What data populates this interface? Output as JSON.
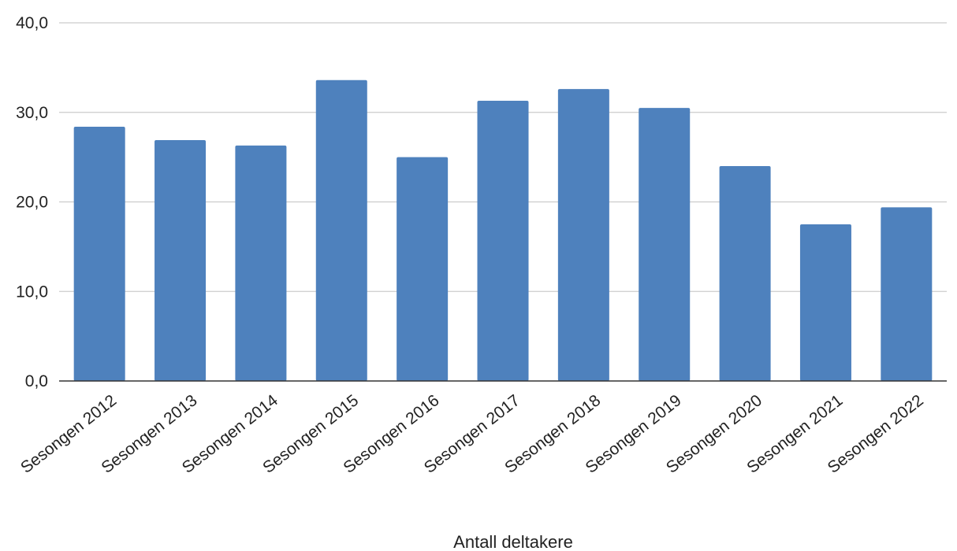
{
  "chart_data": {
    "type": "bar",
    "title": "",
    "xlabel": "Antall deltakere",
    "ylabel": "",
    "categories": [
      "Sesongen 2012",
      "Sesongen 2013",
      "Sesongen 2014",
      "Sesongen 2015",
      "Sesongen 2016",
      "Sesongen 2017",
      "Sesongen 2018",
      "Sesongen 2019",
      "Sesongen 2020",
      "Sesongen 2021",
      "Sesongen 2022"
    ],
    "values": [
      28.4,
      26.9,
      26.3,
      33.6,
      25.0,
      31.3,
      32.6,
      30.5,
      24.0,
      17.5,
      19.4
    ],
    "ylim": [
      0,
      40
    ],
    "yticks": [
      0,
      10,
      20,
      30,
      40
    ],
    "ytick_labels": [
      "0,0",
      "10,0",
      "20,0",
      "30,0",
      "40,0"
    ],
    "grid": true,
    "legend": "none",
    "colors": {
      "bar": "#4e81bd",
      "grid": "#cccccc",
      "axis": "#333333",
      "text": "#222222"
    }
  }
}
